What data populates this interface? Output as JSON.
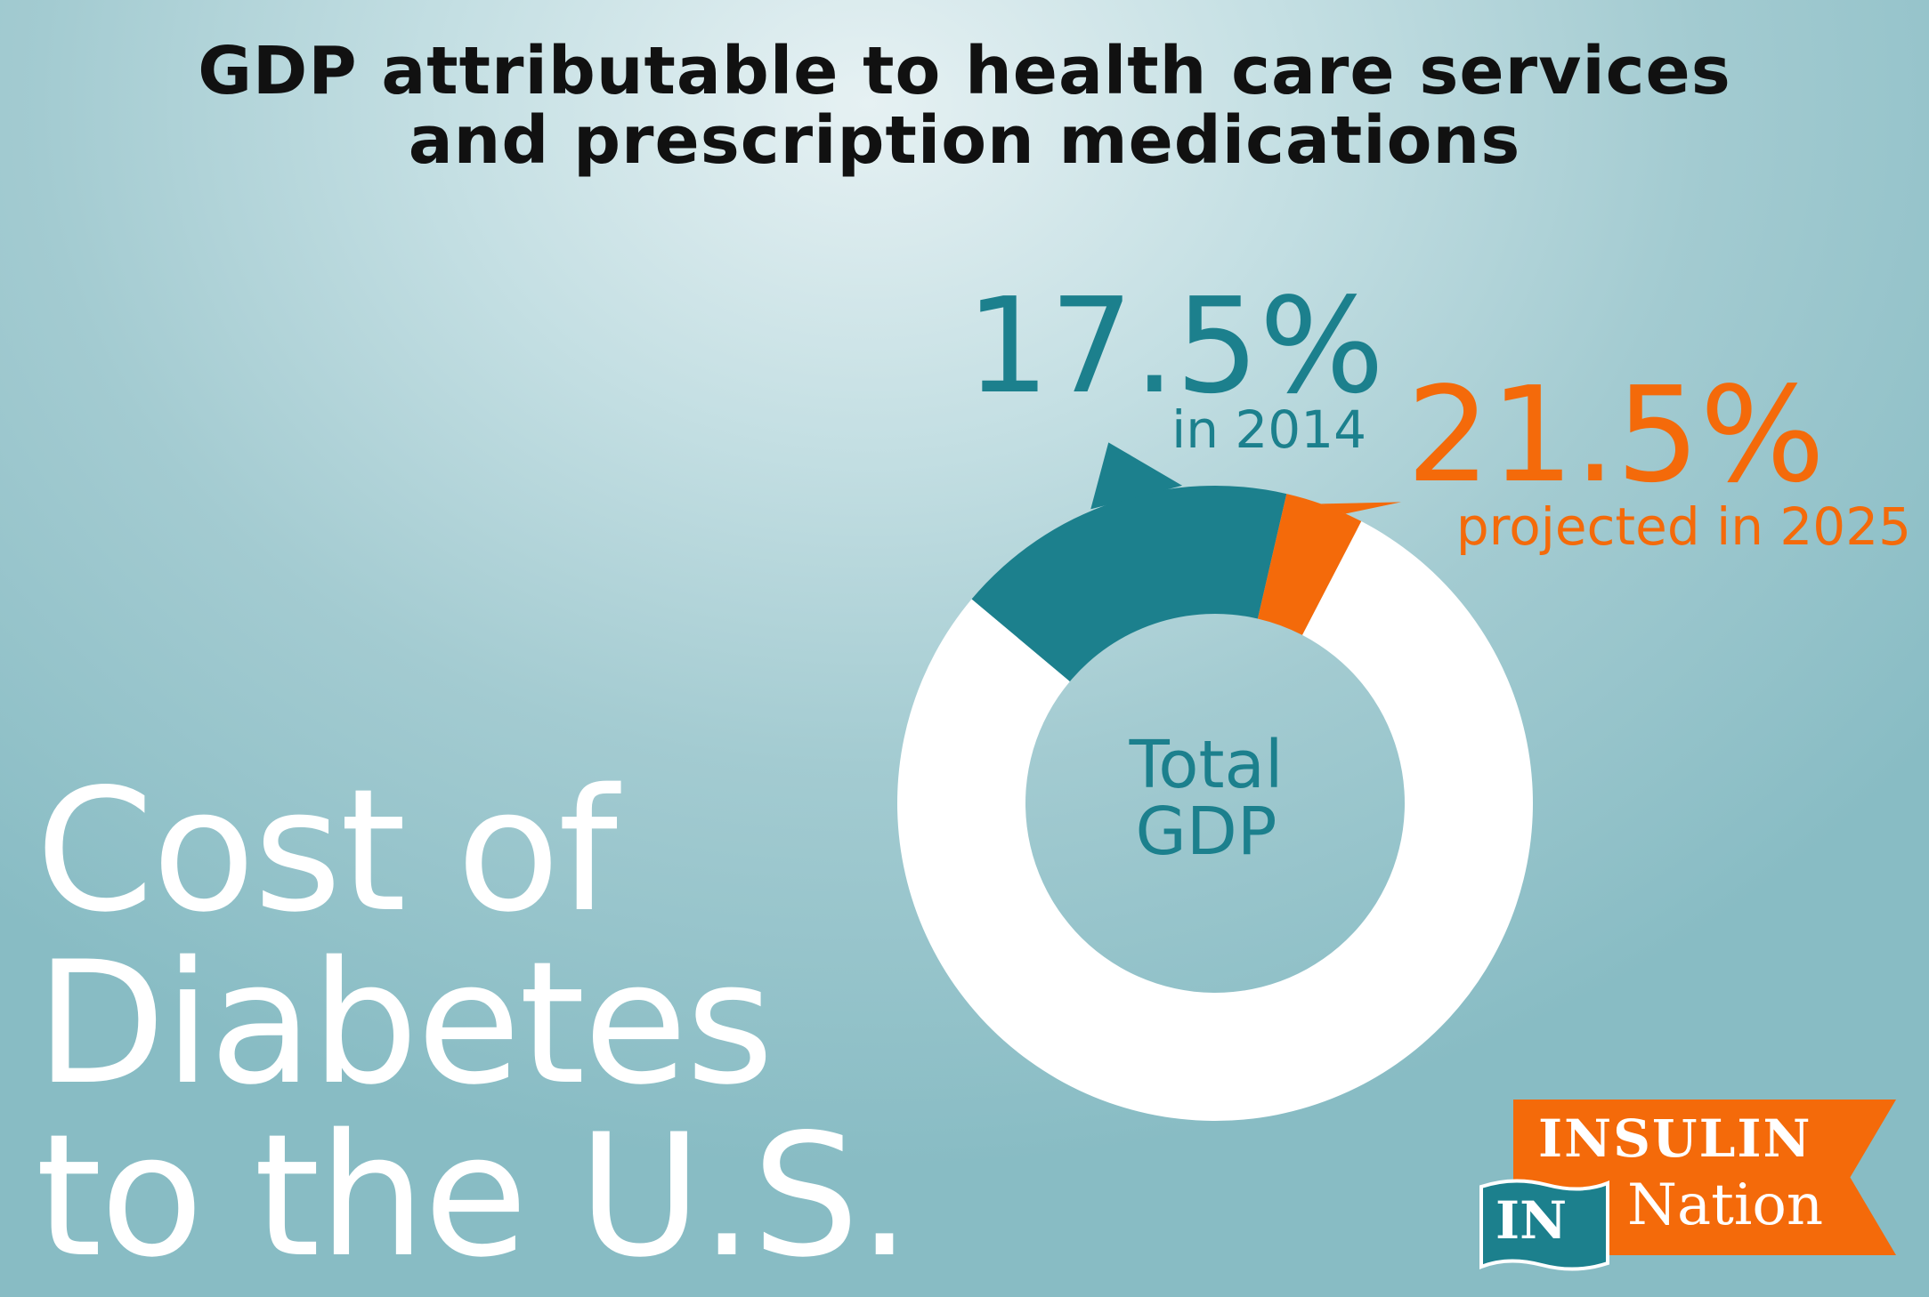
{
  "chart_data": {
    "type": "pie",
    "title": "GDP attributable to health care services and prescription medications",
    "title_lines": [
      "GDP attributable to health care services",
      "and prescription medications"
    ],
    "center_label": [
      "Total",
      "GDP"
    ],
    "slices": [
      {
        "value": 17.5,
        "label": "17.5%",
        "sublabel": "in 2014",
        "color": "#1c808d"
      },
      {
        "value": 4.0,
        "label": "21.5%",
        "sublabel": "projected in 2025",
        "color": "#f46a0a"
      },
      {
        "value": 78.5,
        "label": "",
        "sublabel": "",
        "color": "#ffffff"
      }
    ],
    "projected_total": 21.5
  },
  "headline": [
    "Cost of",
    "Diabetes",
    "to the U.S."
  ],
  "logo": {
    "word1": "INSULIN",
    "word2": "Nation",
    "mark": "IN"
  },
  "colors": {
    "teal": "#1c808d",
    "orange": "#f46a0a",
    "white": "#ffffff",
    "title": "#111111"
  }
}
